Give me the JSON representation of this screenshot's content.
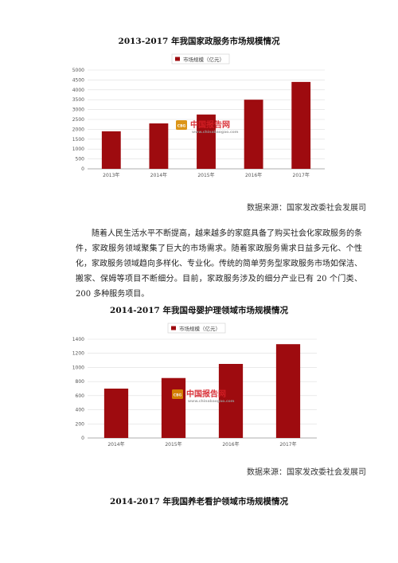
{
  "captions": {
    "chart1": "2013-2017 年我国家政服务市场规模情况",
    "chart2": "2014-2017 年我国母婴护理领域市场规模情况",
    "chart3": "2014-2017 年我国养老看护领域市场规模情况"
  },
  "source_label": "数据来源：国家发改委社会发展司",
  "paragraph": "随着人民生活水平不断提高，越来越多的家庭具备了购买社会化家政服务的条件，家政服务领域聚集了巨大的市场需求。随着家政服务需求日益多元化、个性化，家政服务领域趋向多样化、专业化。传统的简单劳务型家政服务市场如保洁、搬家、保姆等项目不断细分。目前，家政服务涉及的细分产业已有 20 个门类、200 多种服务项目。",
  "watermark": {
    "brand": "中国报告网",
    "url": "www.chinabaogao.com",
    "logo": "CBG"
  },
  "colors": {
    "bar": "#9e0b0f",
    "grid": "#dddddd",
    "axis": "#999999"
  },
  "chart_data": [
    {
      "type": "bar",
      "title": "",
      "legend": "市场规模（亿元）",
      "legend_position": "top-center",
      "categories": [
        "2013年",
        "2014年",
        "2015年",
        "2016年",
        "2017年"
      ],
      "values": [
        1900,
        2300,
        2750,
        3500,
        4400
      ],
      "ylim": [
        0,
        5000
      ],
      "yticks": [
        0,
        500,
        1000,
        1500,
        2000,
        2500,
        3000,
        3500,
        4000,
        4500,
        5000
      ],
      "grid": true
    },
    {
      "type": "bar",
      "title": "",
      "legend": "市场规模（亿元）",
      "legend_position": "top-center",
      "categories": [
        "2014年",
        "2015年",
        "2016年",
        "2017年"
      ],
      "values": [
        700,
        850,
        1050,
        1330
      ],
      "ylim": [
        0,
        1400
      ],
      "yticks": [
        0,
        200,
        400,
        600,
        800,
        1000,
        1200,
        1400
      ],
      "grid": true
    }
  ]
}
